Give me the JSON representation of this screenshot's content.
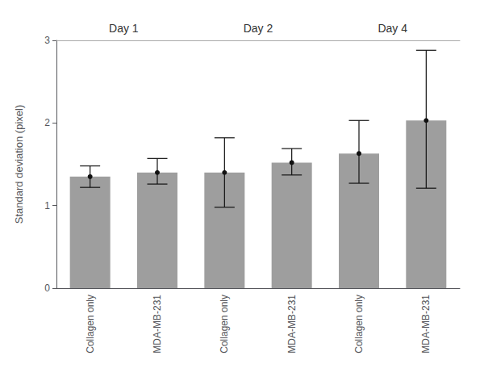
{
  "chart_data": {
    "type": "bar",
    "ylabel": "Standard deviation (pixel)",
    "categories": [
      "Day 1",
      "Day 2",
      "Day 4"
    ],
    "series": [
      {
        "name": "Collagen only",
        "values": [
          1.35,
          1.4,
          1.63
        ],
        "error_upper": [
          0.13,
          0.42,
          0.4
        ],
        "error_lower": [
          0.13,
          0.42,
          0.36
        ]
      },
      {
        "name": "MDA-MB-231",
        "values": [
          1.4,
          1.52,
          2.03
        ],
        "error_upper": [
          0.17,
          0.17,
          0.85
        ],
        "error_lower": [
          0.14,
          0.15,
          0.82
        ]
      }
    ],
    "color": "#9E9E9E",
    "ylim": [
      0,
      3.0
    ],
    "yticks": [
      0,
      1,
      2,
      3
    ],
    "grid": false
  }
}
